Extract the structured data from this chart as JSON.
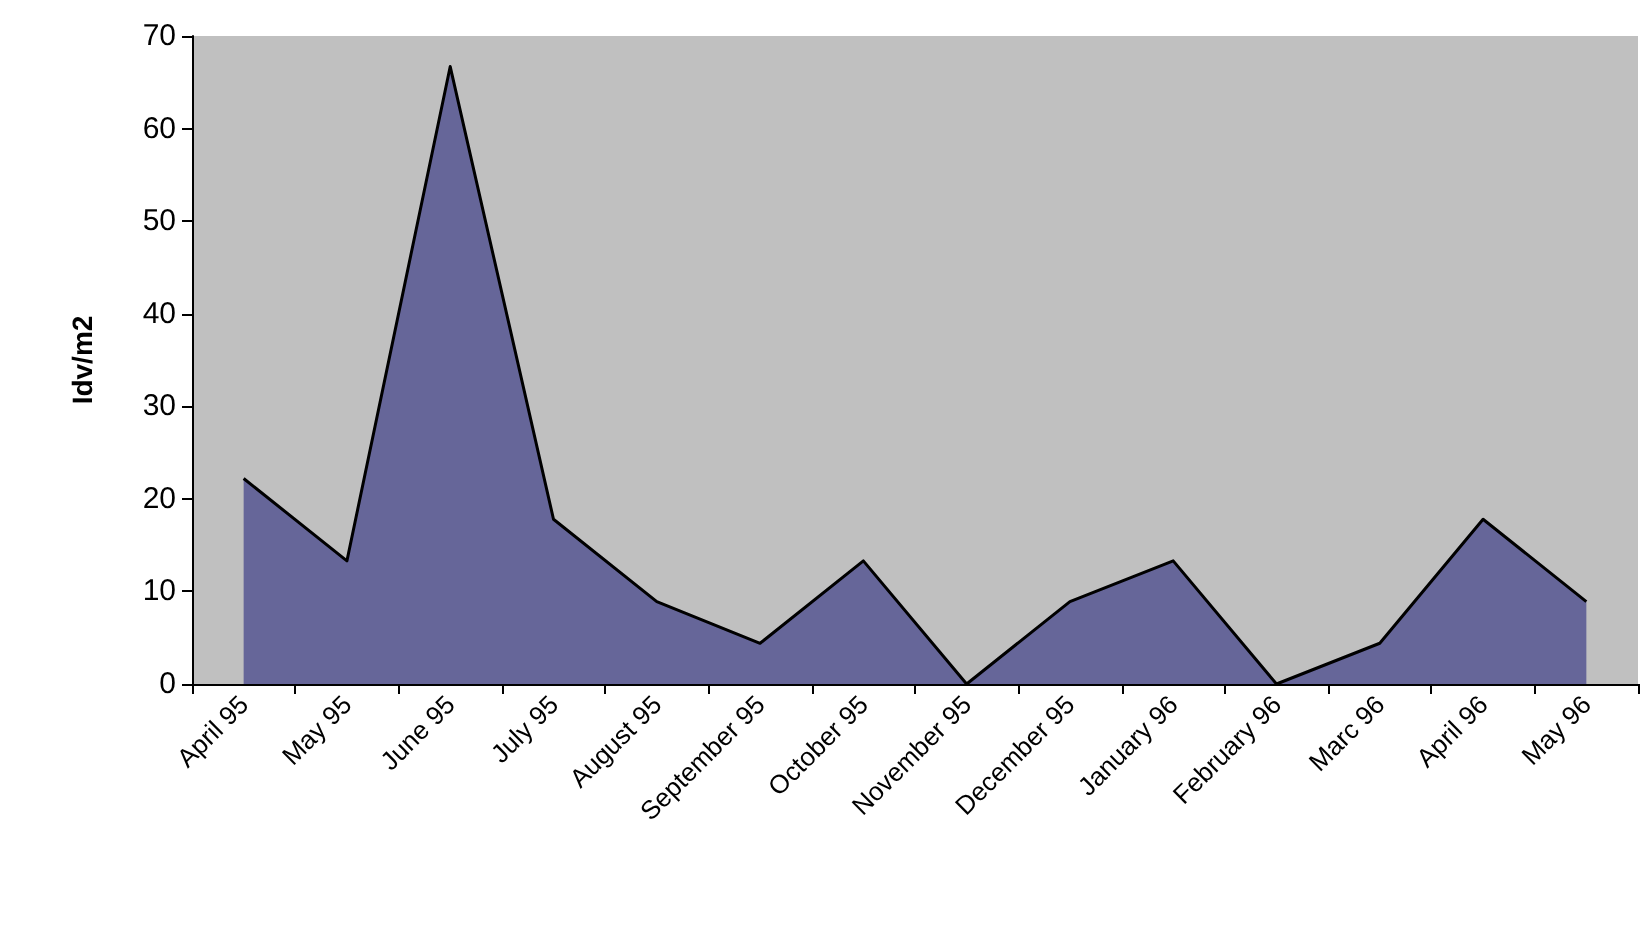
{
  "chart_data": {
    "type": "area",
    "ylabel": "Idv/m2",
    "categories": [
      "April 95",
      "May 95",
      "June 95",
      "July 95",
      "August 95",
      "September 95",
      "October 95",
      "November 95",
      "December 95",
      "January 96",
      "February 96",
      "Marc 96",
      "April 96",
      "May 96"
    ],
    "series": [
      {
        "color": "#666699",
        "values": [
          22.2,
          13.3,
          66.7,
          17.8,
          8.9,
          4.4,
          13.3,
          0,
          8.9,
          13.3,
          0,
          4.4,
          17.8,
          8.9
        ]
      }
    ],
    "ylim": [
      0,
      70
    ],
    "yticks": [
      0,
      10,
      20,
      30,
      40,
      50,
      60,
      70
    ],
    "grid": false,
    "marker": "none",
    "line_style": "solid"
  }
}
